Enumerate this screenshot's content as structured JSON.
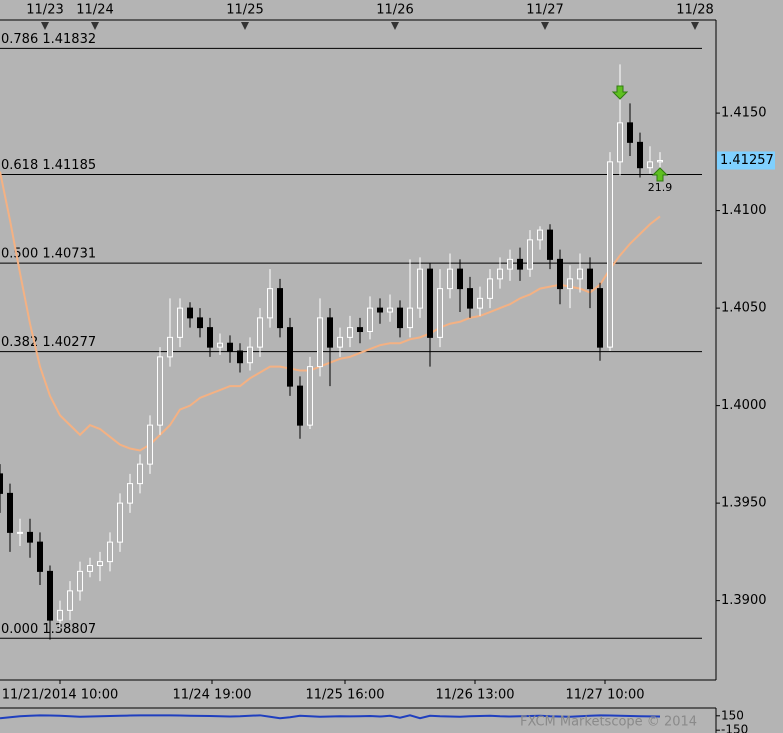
{
  "chart_data": [
    {
      "type": "candlestick",
      "x": [
        0,
        1,
        2,
        3,
        4,
        5,
        6,
        7,
        8,
        9,
        10,
        11,
        12,
        13,
        14,
        15,
        16,
        17,
        18,
        19,
        20,
        21,
        22,
        23,
        24,
        25,
        26,
        27,
        28,
        29,
        30,
        31,
        32,
        33,
        34,
        35,
        36,
        37,
        38,
        39,
        40,
        41,
        42,
        43,
        44,
        45,
        46,
        47,
        48,
        49,
        50,
        51,
        52,
        53,
        54,
        55,
        56,
        57,
        58,
        59,
        60,
        61,
        62,
        63,
        64,
        65,
        66
      ],
      "open": [
        1.3965,
        1.3955,
        1.3935,
        1.3935,
        1.393,
        1.3915,
        1.389,
        1.3895,
        1.3905,
        1.3915,
        1.3918,
        1.392,
        1.393,
        1.395,
        1.396,
        1.397,
        1.399,
        1.4025,
        1.4035,
        1.405,
        1.4045,
        1.404,
        1.403,
        1.4032,
        1.4028,
        1.4022,
        1.403,
        1.4045,
        1.406,
        1.404,
        1.401,
        1.399,
        1.402,
        1.4045,
        1.403,
        1.4035,
        1.404,
        1.4038,
        1.405,
        1.4048,
        1.405,
        1.404,
        1.405,
        1.407,
        1.4035,
        1.406,
        1.407,
        1.406,
        1.405,
        1.4055,
        1.4065,
        1.407,
        1.4075,
        1.407,
        1.4085,
        1.409,
        1.4075,
        1.406,
        1.4065,
        1.407,
        1.406,
        1.403,
        1.4125,
        1.4145,
        1.4135,
        1.4122,
        1.4125
      ],
      "high": [
        1.397,
        1.396,
        1.3942,
        1.3942,
        1.3935,
        1.3918,
        1.39,
        1.391,
        1.392,
        1.3922,
        1.3925,
        1.3935,
        1.3955,
        1.3965,
        1.3975,
        1.3995,
        1.403,
        1.4055,
        1.4055,
        1.4053,
        1.405,
        1.4045,
        1.4037,
        1.4036,
        1.4032,
        1.4035,
        1.405,
        1.407,
        1.4065,
        1.4045,
        1.4015,
        1.4025,
        1.4055,
        1.405,
        1.404,
        1.4046,
        1.4045,
        1.4056,
        1.4055,
        1.4057,
        1.4054,
        1.4075,
        1.4076,
        1.4073,
        1.407,
        1.4078,
        1.4075,
        1.4066,
        1.4061,
        1.407,
        1.4076,
        1.408,
        1.4081,
        1.409,
        1.4092,
        1.4093,
        1.408,
        1.4072,
        1.4078,
        1.4076,
        1.4063,
        1.413,
        1.4175,
        1.4155,
        1.414,
        1.4133,
        1.413
      ],
      "low": [
        1.3945,
        1.3925,
        1.3928,
        1.3922,
        1.3908,
        1.388,
        1.3885,
        1.389,
        1.39,
        1.3912,
        1.391,
        1.3915,
        1.3925,
        1.3945,
        1.3955,
        1.3965,
        1.3985,
        1.402,
        1.403,
        1.404,
        1.4035,
        1.4025,
        1.4026,
        1.4022,
        1.4017,
        1.4018,
        1.4025,
        1.404,
        1.4035,
        1.4005,
        1.3983,
        1.3988,
        1.4015,
        1.401,
        1.4025,
        1.403,
        1.4032,
        1.4034,
        1.4042,
        1.4043,
        1.4035,
        1.4035,
        1.4045,
        1.402,
        1.403,
        1.4055,
        1.4048,
        1.4045,
        1.4046,
        1.405,
        1.406,
        1.4064,
        1.4064,
        1.4066,
        1.408,
        1.407,
        1.4052,
        1.405,
        1.4058,
        1.405,
        1.4023,
        1.4028,
        1.4118,
        1.4128,
        1.4117,
        1.4119,
        1.4121
      ],
      "close": [
        1.3955,
        1.3935,
        1.3935,
        1.393,
        1.3915,
        1.389,
        1.3895,
        1.3905,
        1.3915,
        1.3918,
        1.392,
        1.393,
        1.395,
        1.396,
        1.397,
        1.399,
        1.4025,
        1.4035,
        1.405,
        1.4045,
        1.404,
        1.403,
        1.4032,
        1.4028,
        1.4022,
        1.403,
        1.4045,
        1.406,
        1.404,
        1.401,
        1.399,
        1.402,
        1.4045,
        1.403,
        1.4035,
        1.404,
        1.4038,
        1.405,
        1.4048,
        1.405,
        1.404,
        1.405,
        1.407,
        1.4035,
        1.406,
        1.407,
        1.406,
        1.405,
        1.4055,
        1.4065,
        1.407,
        1.4075,
        1.407,
        1.4085,
        1.409,
        1.4075,
        1.406,
        1.4065,
        1.407,
        1.406,
        1.403,
        1.4125,
        1.4145,
        1.4135,
        1.4122,
        1.4125,
        1.41257
      ],
      "up_color": "#ffffff",
      "down_color": "#000000",
      "moving_average": {
        "color": "#f4b183",
        "values": [
          1.412,
          1.4095,
          1.4068,
          1.4042,
          1.402,
          1.4005,
          1.3995,
          1.399,
          1.3985,
          1.399,
          1.3988,
          1.3984,
          1.398,
          1.3978,
          1.3977,
          1.398,
          1.3985,
          1.399,
          1.3998,
          1.4,
          1.4004,
          1.4006,
          1.4008,
          1.401,
          1.401,
          1.4014,
          1.4017,
          1.402,
          1.402,
          1.4019,
          1.4018,
          1.4018,
          1.402,
          1.4022,
          1.4024,
          1.4025,
          1.4027,
          1.4029,
          1.4031,
          1.4032,
          1.4032,
          1.4034,
          1.4035,
          1.4037,
          1.404,
          1.4042,
          1.4043,
          1.4045,
          1.4046,
          1.4048,
          1.405,
          1.4052,
          1.4055,
          1.4057,
          1.406,
          1.4061,
          1.4062,
          1.4061,
          1.406,
          1.4058,
          1.4062,
          1.407,
          1.4077,
          1.4083,
          1.4088,
          1.4093,
          1.4097
        ]
      },
      "xlim": [
        0,
        71.5
      ],
      "ylim": [
        1.38593,
        1.4208
      ],
      "yticks": [
        {
          "value": 1.39,
          "label": "1.3900"
        },
        {
          "value": 1.395,
          "label": "1.3950"
        },
        {
          "value": 1.4,
          "label": "1.4000"
        },
        {
          "value": 1.405,
          "label": "1.4050"
        },
        {
          "value": 1.41,
          "label": "1.4100"
        },
        {
          "value": 1.415,
          "label": "1.4150"
        }
      ],
      "xticks": [
        {
          "value": 6,
          "label": "11/21/2014 10:00"
        },
        {
          "value": 21.2,
          "label": "11/24 19:00"
        },
        {
          "value": 34.5,
          "label": "11/25 16:00"
        },
        {
          "value": 47.5,
          "label": "11/26 13:00"
        },
        {
          "value": 60.5,
          "label": "11/27 10:00"
        }
      ],
      "x2ticks": [
        {
          "value": 4.5,
          "label": "11/23"
        },
        {
          "value": 9.5,
          "label": "11/24"
        },
        {
          "value": 24.5,
          "label": "11/25"
        },
        {
          "value": 39.5,
          "label": "11/26"
        },
        {
          "value": 54.5,
          "label": "11/27"
        },
        {
          "value": 69.5,
          "label": "11/28"
        }
      ],
      "fib_levels": [
        {
          "label": "0.786 1.41832",
          "value": 1.41832
        },
        {
          "label": "0.618 1.41185",
          "value": 1.41185
        },
        {
          "label": "0.500 1.40731",
          "value": 1.40731
        },
        {
          "label": "0.382 1.40277",
          "value": 1.40277
        },
        {
          "label": "0.000 1.38807",
          "value": 1.38807
        }
      ],
      "last_price": 1.41257,
      "annotation": "21.9",
      "watermark": "FXCM Marketscope © 2014"
    },
    {
      "type": "line",
      "x": [
        0,
        1,
        2,
        3,
        4,
        5,
        6,
        7,
        8,
        9,
        10,
        11,
        12,
        13,
        14,
        15,
        16,
        17,
        18,
        19,
        20,
        21,
        22,
        23,
        24,
        25,
        26,
        27,
        28,
        29,
        30,
        31,
        32,
        33,
        34,
        35,
        36,
        37,
        38,
        39,
        40,
        41,
        42,
        43,
        44,
        45,
        46,
        47,
        48,
        49,
        50,
        51,
        52,
        53,
        54,
        55,
        56,
        57,
        58,
        59,
        60,
        61,
        62,
        63,
        64,
        65,
        66
      ],
      "values": [
        100,
        120,
        140,
        150,
        160,
        155,
        150,
        140,
        130,
        135,
        140,
        145,
        150,
        155,
        158,
        160,
        160,
        158,
        155,
        150,
        148,
        145,
        140,
        135,
        140,
        150,
        160,
        130,
        100,
        120,
        150,
        140,
        130,
        135,
        140,
        138,
        140,
        145,
        135,
        150,
        110,
        160,
        100,
        150,
        140,
        135,
        130,
        140,
        145,
        150,
        140,
        135,
        140,
        145,
        150,
        140,
        135,
        130,
        140,
        150,
        160,
        155,
        150,
        145,
        140,
        138,
        136
      ],
      "color": "#1f3fbf",
      "xlim": [
        0,
        71.5
      ],
      "ylim": [
        -250,
        250
      ],
      "yticks": [
        150,
        -150
      ]
    }
  ]
}
